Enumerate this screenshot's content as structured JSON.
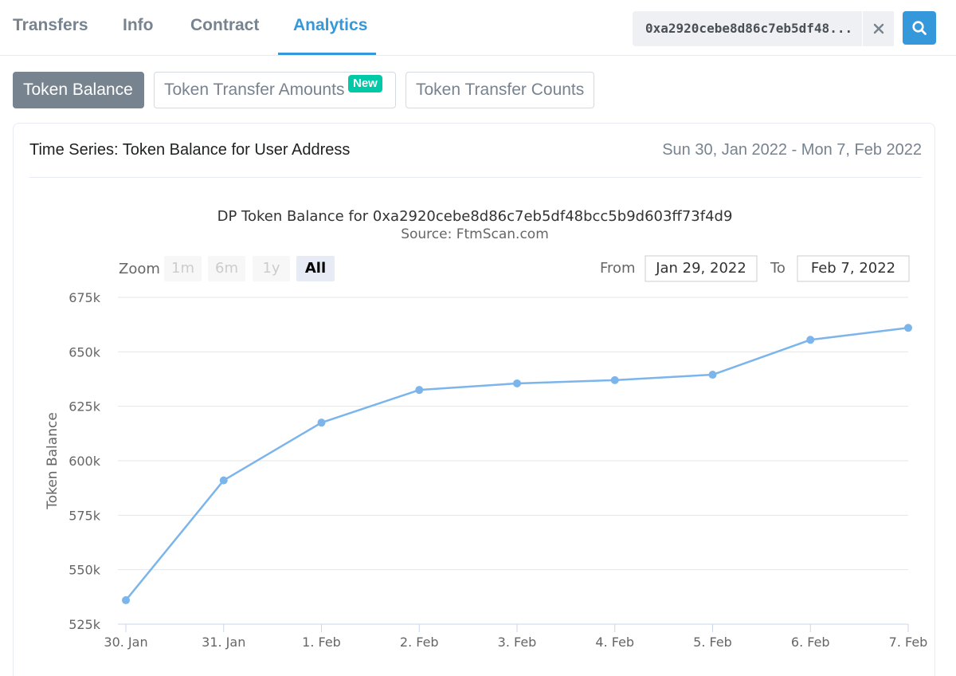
{
  "tabs": [
    {
      "label": "Transfers"
    },
    {
      "label": "Info"
    },
    {
      "label": "Contract"
    },
    {
      "label": "Analytics"
    }
  ],
  "search": {
    "value": "0xa2920cebe8d86c7eb5df48..."
  },
  "subtabs": [
    {
      "label": "Token Balance"
    },
    {
      "label": "Token Transfer Amounts"
    },
    {
      "label": "Token Transfer Counts"
    }
  ],
  "badge_new": "New",
  "card": {
    "title": "Time Series: Token Balance for User Address",
    "date_range": "Sun 30, Jan 2022 - Mon 7, Feb 2022"
  },
  "chart_controls": {
    "zoom_label": "Zoom",
    "zoom_buttons": [
      "1m",
      "6m",
      "1y",
      "All"
    ],
    "from_label": "From",
    "from_value": "Jan 29, 2022",
    "to_label": "To",
    "to_value": "Feb 7, 2022"
  },
  "colors": {
    "accent": "#3498db",
    "series": "#7cb5ec",
    "badge": "#00c9a7"
  },
  "chart_data": {
    "type": "line",
    "title": "DP Token Balance for 0xa2920cebe8d86c7eb5df48bcc5b9d603ff73f4d9",
    "subtitle": "Source: FtmScan.com",
    "ylabel": "Token Balance",
    "xlabel": "",
    "categories": [
      "30. Jan",
      "31. Jan",
      "1. Feb",
      "2. Feb",
      "3. Feb",
      "4. Feb",
      "5. Feb",
      "6. Feb",
      "7. Feb"
    ],
    "series": [
      {
        "values": [
          536000,
          591000,
          617500,
          632500,
          635500,
          637000,
          639500,
          655500,
          661000
        ]
      }
    ],
    "ylim": [
      525000,
      675000
    ],
    "yticks": [
      "525k",
      "550k",
      "575k",
      "600k",
      "625k",
      "650k",
      "675k"
    ],
    "grid": true
  }
}
